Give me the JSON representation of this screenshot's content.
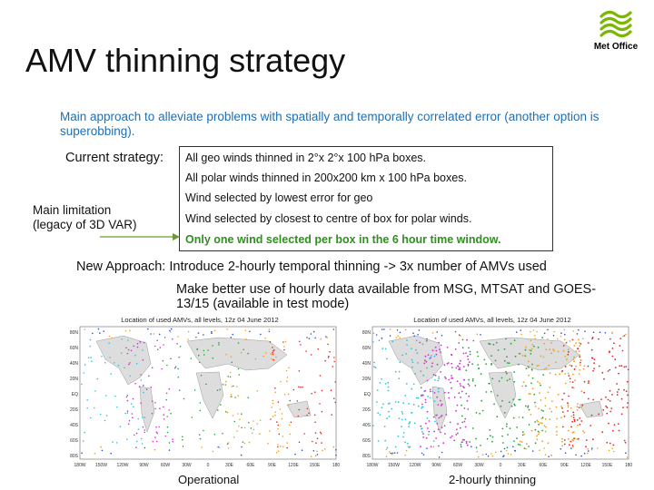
{
  "slide": {
    "title": "AMV thinning strategy",
    "logo_text": "Met Office",
    "intro": "Main approach to alleviate problems with spatially and temporally correlated error (another option is superobbing).",
    "current_label": "Current strategy:",
    "strategy_lines": [
      "All geo winds thinned in 2°x 2°x 100 hPa boxes.",
      "All polar winds thinned in 200x200 km x 100 hPa boxes.",
      "Wind selected by lowest error for geo",
      "Wind selected by closest to centre of box for polar winds.",
      "Only one wind selected per box in the 6 hour time window."
    ],
    "limitation": [
      "Main limitation",
      "(legacy of 3D VAR)"
    ],
    "new_approach": "New Approach: Introduce 2-hourly temporal thinning -> 3x number of AMVs used",
    "better_use": "Make better use of hourly data available from MSG, MTSAT and GOES-13/15 (available in test mode)"
  },
  "maps": [
    {
      "title": "Location of used AMVs, all levels, 12z 04 June 2012",
      "caption": "Operational",
      "lat_labels": [
        "80N",
        "60N",
        "40N",
        "20N",
        "EQ",
        "20S",
        "40S",
        "60S",
        "80S"
      ],
      "lon_labels": [
        "180W",
        "150W",
        "120W",
        "90W",
        "60W",
        "30W",
        "0",
        "30E",
        "60E",
        "90E",
        "120E",
        "150E",
        "180"
      ]
    },
    {
      "title": "Location of used AMVs, all levels, 12z 04 June 2012",
      "caption": "2-hourly thinning",
      "lat_labels": [
        "80N",
        "60N",
        "40N",
        "20N",
        "EQ",
        "20S",
        "40S",
        "60S",
        "80S"
      ],
      "lon_labels": [
        "180W",
        "150W",
        "120W",
        "90W",
        "60W",
        "30W",
        "0",
        "30E",
        "60E",
        "90E",
        "120E",
        "150E",
        "180"
      ]
    }
  ],
  "colors": {
    "intro_blue": "#1f6fb4",
    "highlight_green": "#2f8f1f",
    "amv_cyan": "#2ec4e6",
    "amv_green": "#22a83a",
    "amv_orange": "#f0a020",
    "amv_red": "#e02a2a",
    "amv_magenta": "#cc33cc",
    "amv_blue": "#2a50d0"
  }
}
